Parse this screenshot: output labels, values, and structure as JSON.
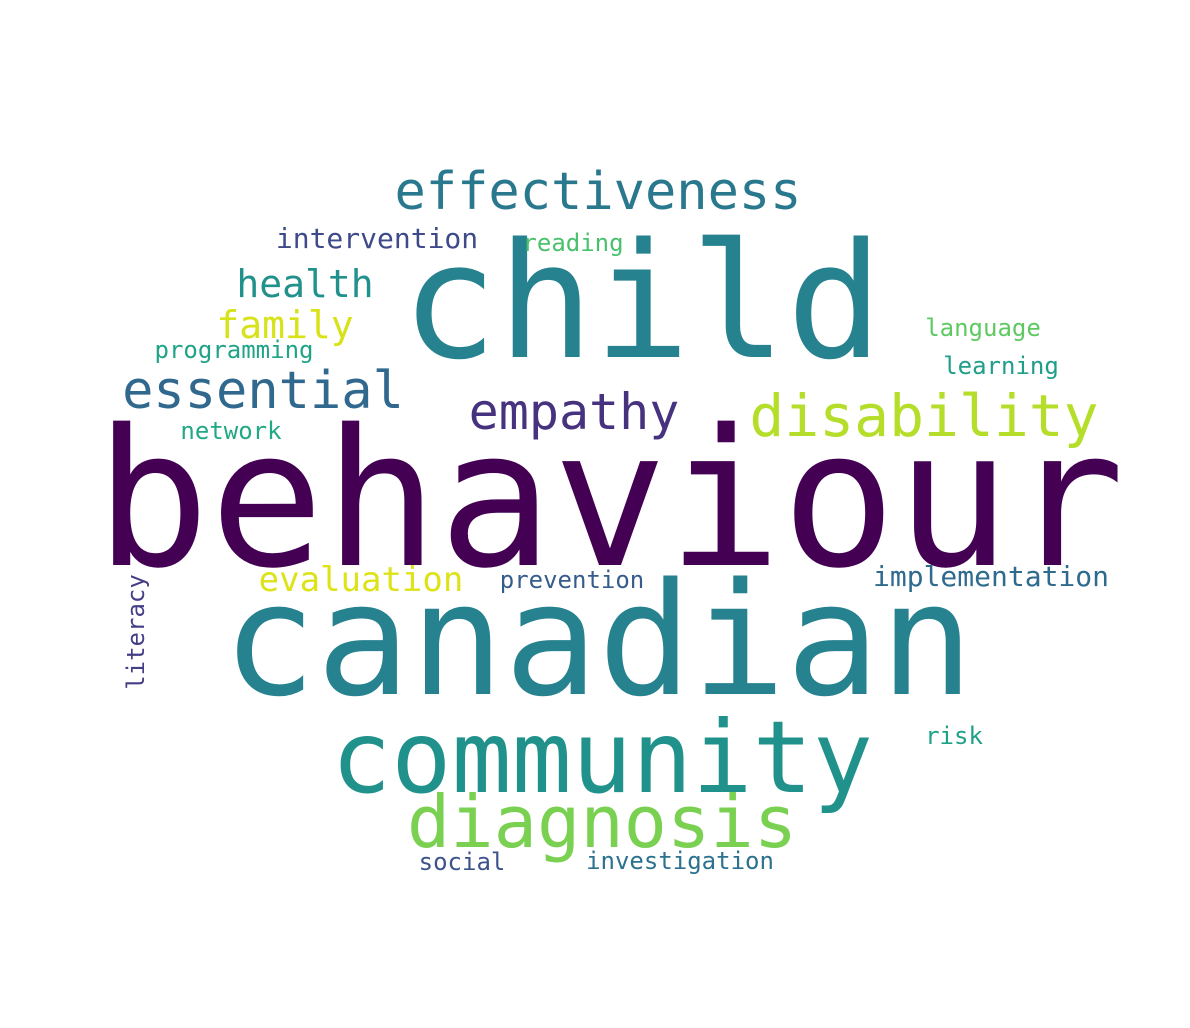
{
  "word_cloud": {
    "words": [
      {
        "id": "behaviour",
        "text": "behaviour",
        "color": "#440154"
      },
      {
        "id": "canadian",
        "text": "canadian",
        "color": "#26828e"
      },
      {
        "id": "child",
        "text": "child",
        "color": "#26828e"
      },
      {
        "id": "community",
        "text": "community",
        "color": "#21918c"
      },
      {
        "id": "diagnosis",
        "text": "diagnosis",
        "color": "#7ad151"
      },
      {
        "id": "effectiveness",
        "text": "effectiveness",
        "color": "#2a788e"
      },
      {
        "id": "disability",
        "text": "disability",
        "color": "#b5de2b"
      },
      {
        "id": "empathy",
        "text": "empathy",
        "color": "#46327e"
      },
      {
        "id": "essential",
        "text": "essential",
        "color": "#31688e"
      },
      {
        "id": "health",
        "text": "health",
        "color": "#21918c"
      },
      {
        "id": "family",
        "text": "family",
        "color": "#d8e219"
      },
      {
        "id": "evaluation",
        "text": "evaluation",
        "color": "#dde318"
      },
      {
        "id": "intervention",
        "text": "intervention",
        "color": "#3e4a89"
      },
      {
        "id": "implementation",
        "text": "implementation",
        "color": "#2f6b8e"
      },
      {
        "id": "prevention",
        "text": "prevention",
        "color": "#365c8d"
      },
      {
        "id": "reading",
        "text": "reading",
        "color": "#4ac16d"
      },
      {
        "id": "language",
        "text": "language",
        "color": "#5ec962"
      },
      {
        "id": "learning",
        "text": "learning",
        "color": "#1f9e89"
      },
      {
        "id": "programming",
        "text": "programming",
        "color": "#20a386"
      },
      {
        "id": "network",
        "text": "network",
        "color": "#22a884"
      },
      {
        "id": "literacy",
        "text": "literacy",
        "color": "#433e85"
      },
      {
        "id": "risk",
        "text": "risk",
        "color": "#1fa187"
      },
      {
        "id": "social",
        "text": "social",
        "color": "#3b528b"
      },
      {
        "id": "investigation",
        "text": "investigation",
        "color": "#2c728e"
      }
    ]
  }
}
